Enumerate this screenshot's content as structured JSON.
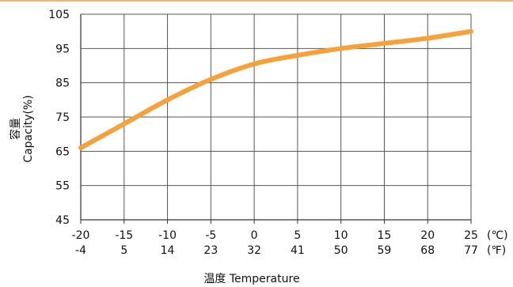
{
  "chart_data": {
    "type": "line",
    "title": "",
    "xlabel": "温度 Temperature",
    "ylabel_cn": "容量",
    "ylabel_en": "Capacity(%)",
    "ylim": [
      45,
      105
    ],
    "yticks": [
      105,
      95,
      85,
      75,
      65,
      55,
      45
    ],
    "xlim": [
      -20,
      25
    ],
    "x_celsius": [
      "-20",
      "-15",
      "-10",
      "-5",
      "0",
      "5",
      "10",
      "15",
      "20",
      "25"
    ],
    "x_fahrenheit": [
      "-4",
      "5",
      "14",
      "23",
      "32",
      "41",
      "50",
      "59",
      "68",
      "77"
    ],
    "unit_celsius": "(℃)",
    "unit_fahrenheit": "(℉)",
    "grid": true,
    "line_color": "#f6a13a",
    "series": [
      {
        "x": [
          -20,
          -15,
          -10,
          -5,
          0,
          5,
          10,
          15,
          20,
          25
        ],
        "values": [
          66,
          73,
          80,
          86,
          90.5,
          93,
          95,
          96.5,
          98,
          100
        ]
      }
    ]
  }
}
